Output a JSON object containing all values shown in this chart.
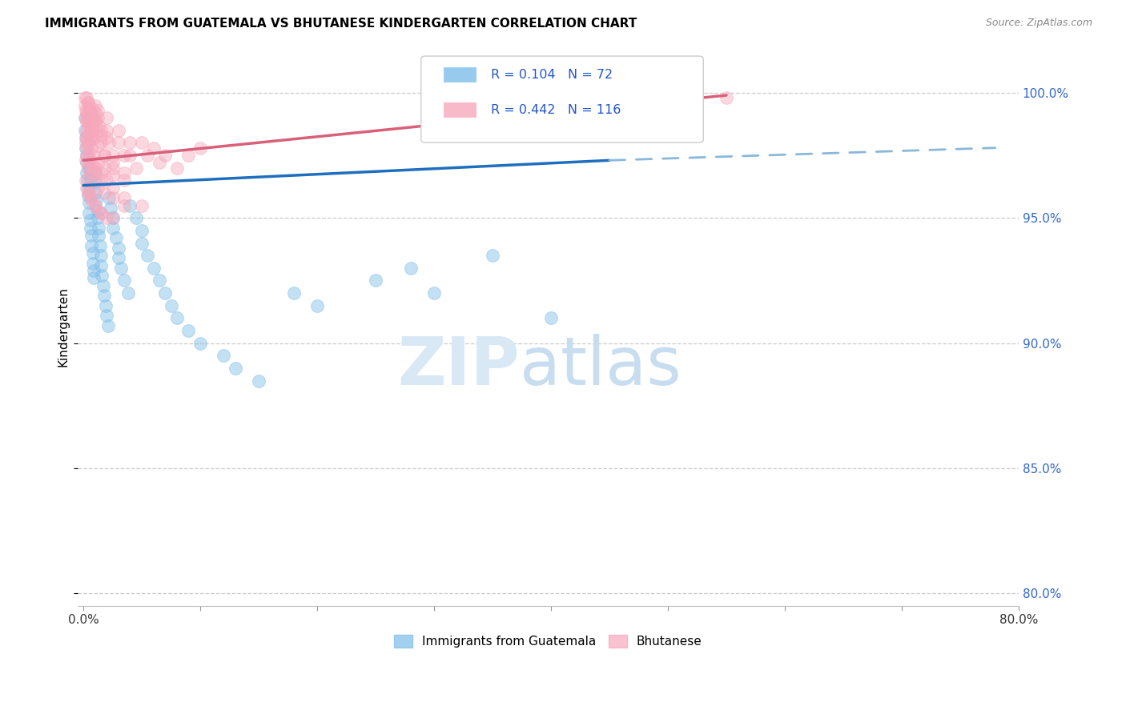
{
  "title": "IMMIGRANTS FROM GUATEMALA VS BHUTANESE KINDERGARTEN CORRELATION CHART",
  "source": "Source: ZipAtlas.com",
  "ylabel": "Kindergarten",
  "yticks": [
    80.0,
    85.0,
    90.0,
    95.0,
    100.0
  ],
  "ytick_labels": [
    "80.0%",
    "85.0%",
    "90.0%",
    "95.0%",
    "100.0%"
  ],
  "legend_r_blue": "R = 0.104",
  "legend_n_blue": "N = 72",
  "legend_r_pink": "R = 0.442",
  "legend_n_pink": "N = 116",
  "legend_label_blue": "Immigrants from Guatemala",
  "legend_label_pink": "Bhutanese",
  "blue_color": "#7dbde8",
  "pink_color": "#f7a8bc",
  "trend_blue_solid": "#1f6fbf",
  "trend_blue_dashed": "#8ab8d8",
  "trend_pink": "#d9607a",
  "watermark_zip": "ZIP",
  "watermark_atlas": "atlas",
  "blue_scatter": [
    [
      0.1,
      99.0
    ],
    [
      0.15,
      98.5
    ],
    [
      0.2,
      98.2
    ],
    [
      0.2,
      97.8
    ],
    [
      0.25,
      97.5
    ],
    [
      0.3,
      97.2
    ],
    [
      0.3,
      96.8
    ],
    [
      0.35,
      96.5
    ],
    [
      0.4,
      96.2
    ],
    [
      0.4,
      95.9
    ],
    [
      0.5,
      95.6
    ],
    [
      0.5,
      95.2
    ],
    [
      0.6,
      94.9
    ],
    [
      0.6,
      94.6
    ],
    [
      0.7,
      94.3
    ],
    [
      0.7,
      93.9
    ],
    [
      0.8,
      93.6
    ],
    [
      0.8,
      93.2
    ],
    [
      0.9,
      92.9
    ],
    [
      0.9,
      92.6
    ],
    [
      1.0,
      96.8
    ],
    [
      1.0,
      96.4
    ],
    [
      1.0,
      96.0
    ],
    [
      1.1,
      95.7
    ],
    [
      1.2,
      95.3
    ],
    [
      1.2,
      95.0
    ],
    [
      1.3,
      94.6
    ],
    [
      1.3,
      94.3
    ],
    [
      1.4,
      93.9
    ],
    [
      1.5,
      93.5
    ],
    [
      1.5,
      93.1
    ],
    [
      1.6,
      92.7
    ],
    [
      1.7,
      92.3
    ],
    [
      1.8,
      91.9
    ],
    [
      1.9,
      91.5
    ],
    [
      2.0,
      91.1
    ],
    [
      2.1,
      90.7
    ],
    [
      2.2,
      95.8
    ],
    [
      2.3,
      95.4
    ],
    [
      2.5,
      95.0
    ],
    [
      2.5,
      94.6
    ],
    [
      2.8,
      94.2
    ],
    [
      3.0,
      93.8
    ],
    [
      3.0,
      93.4
    ],
    [
      3.2,
      93.0
    ],
    [
      3.5,
      92.5
    ],
    [
      3.8,
      92.0
    ],
    [
      4.0,
      95.5
    ],
    [
      4.5,
      95.0
    ],
    [
      5.0,
      94.5
    ],
    [
      5.0,
      94.0
    ],
    [
      5.5,
      93.5
    ],
    [
      6.0,
      93.0
    ],
    [
      6.5,
      92.5
    ],
    [
      7.0,
      92.0
    ],
    [
      7.5,
      91.5
    ],
    [
      8.0,
      91.0
    ],
    [
      9.0,
      90.5
    ],
    [
      10.0,
      90.0
    ],
    [
      12.0,
      89.5
    ],
    [
      13.0,
      89.0
    ],
    [
      15.0,
      88.5
    ],
    [
      18.0,
      92.0
    ],
    [
      20.0,
      91.5
    ],
    [
      25.0,
      92.5
    ],
    [
      28.0,
      93.0
    ],
    [
      30.0,
      92.0
    ],
    [
      35.0,
      93.5
    ],
    [
      40.0,
      91.0
    ],
    [
      45.0,
      99.5
    ],
    [
      0.5,
      97.0
    ],
    [
      0.6,
      96.5
    ]
  ],
  "pink_scatter": [
    [
      0.1,
      99.8
    ],
    [
      0.15,
      99.5
    ],
    [
      0.2,
      99.3
    ],
    [
      0.2,
      99.0
    ],
    [
      0.25,
      98.8
    ],
    [
      0.3,
      98.5
    ],
    [
      0.3,
      98.2
    ],
    [
      0.35,
      98.0
    ],
    [
      0.4,
      99.6
    ],
    [
      0.4,
      99.2
    ],
    [
      0.5,
      99.0
    ],
    [
      0.5,
      98.8
    ],
    [
      0.6,
      98.5
    ],
    [
      0.6,
      98.2
    ],
    [
      0.7,
      99.4
    ],
    [
      0.7,
      99.1
    ],
    [
      0.8,
      98.8
    ],
    [
      0.8,
      98.5
    ],
    [
      0.9,
      98.2
    ],
    [
      1.0,
      99.5
    ],
    [
      1.0,
      99.2
    ],
    [
      1.0,
      98.9
    ],
    [
      1.1,
      98.5
    ],
    [
      1.2,
      99.3
    ],
    [
      1.2,
      99.0
    ],
    [
      1.3,
      98.7
    ],
    [
      1.5,
      98.3
    ],
    [
      1.5,
      98.0
    ],
    [
      1.8,
      97.5
    ],
    [
      2.0,
      99.0
    ],
    [
      2.0,
      98.5
    ],
    [
      2.2,
      98.0
    ],
    [
      2.5,
      97.5
    ],
    [
      2.5,
      97.0
    ],
    [
      3.0,
      98.5
    ],
    [
      3.0,
      98.0
    ],
    [
      3.5,
      97.5
    ],
    [
      4.0,
      98.0
    ],
    [
      4.0,
      97.5
    ],
    [
      4.5,
      97.0
    ],
    [
      5.0,
      98.0
    ],
    [
      5.5,
      97.5
    ],
    [
      6.0,
      97.8
    ],
    [
      6.5,
      97.2
    ],
    [
      7.0,
      97.5
    ],
    [
      8.0,
      97.0
    ],
    [
      9.0,
      97.5
    ],
    [
      10.0,
      97.8
    ],
    [
      0.3,
      99.8
    ],
    [
      0.4,
      99.6
    ],
    [
      0.5,
      99.4
    ],
    [
      0.6,
      99.2
    ],
    [
      0.8,
      99.0
    ],
    [
      1.0,
      98.8
    ],
    [
      1.5,
      98.5
    ],
    [
      2.0,
      98.2
    ],
    [
      0.2,
      98.0
    ],
    [
      0.3,
      97.8
    ],
    [
      0.5,
      97.5
    ],
    [
      0.8,
      97.2
    ],
    [
      1.0,
      97.0
    ],
    [
      1.5,
      96.8
    ],
    [
      2.0,
      96.5
    ],
    [
      0.4,
      98.8
    ],
    [
      0.6,
      98.5
    ],
    [
      0.8,
      98.2
    ],
    [
      1.2,
      97.9
    ],
    [
      1.8,
      97.5
    ],
    [
      2.5,
      97.2
    ],
    [
      3.5,
      96.8
    ],
    [
      0.3,
      97.5
    ],
    [
      0.5,
      97.2
    ],
    [
      0.7,
      97.0
    ],
    [
      1.0,
      96.8
    ],
    [
      1.5,
      96.5
    ],
    [
      2.5,
      96.2
    ],
    [
      3.5,
      95.8
    ],
    [
      5.0,
      95.5
    ],
    [
      0.4,
      96.0
    ],
    [
      0.6,
      95.8
    ],
    [
      1.0,
      95.5
    ],
    [
      1.5,
      95.2
    ],
    [
      2.0,
      95.0
    ],
    [
      0.2,
      96.5
    ],
    [
      0.3,
      96.2
    ],
    [
      0.5,
      96.0
    ],
    [
      0.7,
      95.7
    ],
    [
      1.0,
      95.5
    ],
    [
      1.5,
      95.2
    ],
    [
      2.5,
      95.0
    ],
    [
      30.0,
      99.5
    ],
    [
      55.0,
      99.8
    ],
    [
      0.2,
      97.3
    ],
    [
      0.4,
      97.0
    ],
    [
      0.6,
      96.8
    ],
    [
      0.8,
      96.5
    ],
    [
      1.2,
      96.2
    ],
    [
      1.8,
      96.0
    ],
    [
      2.5,
      95.8
    ],
    [
      3.5,
      95.5
    ],
    [
      0.3,
      98.3
    ],
    [
      0.5,
      98.0
    ],
    [
      0.7,
      97.8
    ],
    [
      0.9,
      97.5
    ],
    [
      1.3,
      97.2
    ],
    [
      1.8,
      97.0
    ],
    [
      2.5,
      96.7
    ],
    [
      3.5,
      96.5
    ],
    [
      0.25,
      99.2
    ],
    [
      0.35,
      99.0
    ],
    [
      0.55,
      98.8
    ],
    [
      0.75,
      98.5
    ]
  ],
  "xlim": [
    -0.5,
    80.0
  ],
  "ylim": [
    79.5,
    101.8
  ],
  "blue_trend_x0": 0,
  "blue_trend_y0": 96.3,
  "blue_trend_x1": 45,
  "blue_trend_y1": 97.3,
  "blue_dashed_x1": 78,
  "blue_dashed_y1": 97.8,
  "pink_trend_x0": 0,
  "pink_trend_y0": 97.3,
  "pink_trend_x1": 55,
  "pink_trend_y1": 99.9
}
